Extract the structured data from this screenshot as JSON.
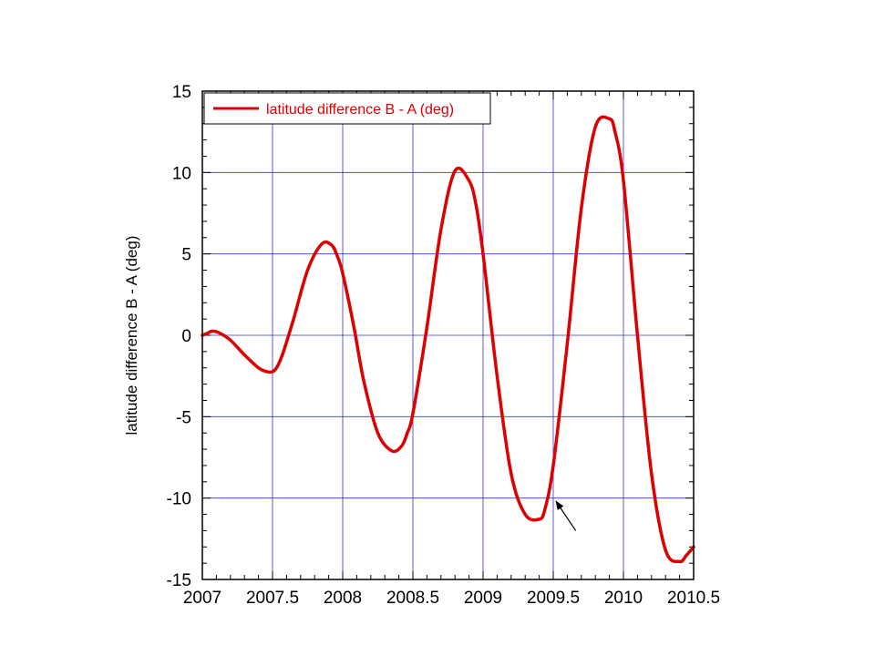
{
  "chart_data": {
    "type": "line",
    "title": "",
    "xlabel": "",
    "ylabel": "latitude difference B - A (deg)",
    "xlim": [
      2007,
      2010.5
    ],
    "ylim": [
      -15,
      15
    ],
    "x_ticks": [
      2007,
      2007.5,
      2008,
      2008.5,
      2009,
      2009.5,
      2010,
      2010.5
    ],
    "x_tick_labels": [
      "2007",
      "2007.5",
      "2008",
      "2008.5",
      "2009",
      "2009.5",
      "2010",
      "2010.5"
    ],
    "y_ticks": [
      -15,
      -10,
      -5,
      0,
      5,
      10,
      15
    ],
    "y_tick_labels": [
      "-15",
      "-10",
      "-5",
      "0",
      "5",
      "10",
      "15"
    ],
    "grid": true,
    "legend_position": "top-left",
    "colors": {
      "series": "#dd0000",
      "grid": "#3333cc",
      "axes": "#000000"
    },
    "series": [
      {
        "name": "latitude difference B - A (deg)",
        "x": [
          2007.0,
          2007.03,
          2007.07,
          2007.12,
          2007.2,
          2007.3,
          2007.4,
          2007.47,
          2007.52,
          2007.57,
          2007.65,
          2007.75,
          2007.85,
          2007.92,
          2007.96,
          2008.0,
          2008.08,
          2008.15,
          2008.25,
          2008.35,
          2008.42,
          2008.46,
          2008.5,
          2008.6,
          2008.7,
          2008.8,
          2008.9,
          2008.95,
          2009.0,
          2009.1,
          2009.2,
          2009.3,
          2009.4,
          2009.44,
          2009.5,
          2009.6,
          2009.7,
          2009.8,
          2009.9,
          2009.94,
          2010.0,
          2010.1,
          2010.2,
          2010.3,
          2010.4,
          2010.45,
          2010.5
        ],
        "y": [
          0.0,
          0.1,
          0.25,
          0.15,
          -0.3,
          -1.2,
          -2.0,
          -2.25,
          -2.1,
          -1.2,
          1.0,
          4.0,
          5.6,
          5.55,
          4.9,
          3.8,
          0.5,
          -2.8,
          -6.0,
          -7.1,
          -6.8,
          -6.0,
          -4.8,
          0.5,
          6.5,
          10.1,
          9.5,
          8.0,
          5.0,
          -2.5,
          -8.5,
          -11.0,
          -11.3,
          -10.7,
          -8.0,
          -0.5,
          7.8,
          12.8,
          13.3,
          12.5,
          9.5,
          0.0,
          -8.5,
          -13.2,
          -13.9,
          -13.5,
          -13.0
        ]
      }
    ],
    "annotations": [
      {
        "type": "arrow",
        "from": [
          2009.66,
          -12.0
        ],
        "to": [
          2009.52,
          -10.2
        ]
      }
    ]
  }
}
